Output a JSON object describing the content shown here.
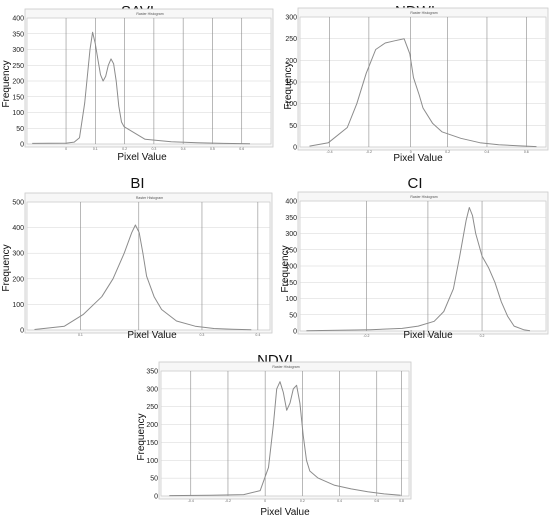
{
  "charts": [
    {
      "id": "savi",
      "title": "SAVI",
      "window_title": "Raster Histogram",
      "ylabel": "Frequency",
      "xlabel": "Pixel Value",
      "y_ticks": [
        0,
        50,
        100,
        150,
        200,
        250,
        300,
        350,
        400
      ],
      "ylim": [
        0,
        400
      ],
      "x_tick_labels": [
        "0",
        "0.1",
        "0.2",
        "0.3",
        "0.4",
        "0.5",
        "0.6"
      ],
      "chart_data": {
        "type": "line",
        "xlim": [
          -0.15,
          0.78
        ],
        "x": [
          -0.13,
          0.0,
          0.03,
          0.05,
          0.07,
          0.09,
          0.1,
          0.11,
          0.12,
          0.13,
          0.14,
          0.15,
          0.16,
          0.17,
          0.18,
          0.19,
          0.2,
          0.21,
          0.22,
          0.24,
          0.27,
          0.3,
          0.4,
          0.5,
          0.6,
          0.7
        ],
        "values": [
          2,
          3,
          6,
          20,
          130,
          300,
          355,
          320,
          270,
          220,
          200,
          215,
          250,
          270,
          255,
          200,
          120,
          70,
          55,
          45,
          30,
          15,
          7,
          4,
          2,
          1
        ]
      }
    },
    {
      "id": "ndwi",
      "title": "NDWI",
      "window_title": "Raster Histogram",
      "ylabel": "Frequency",
      "xlabel": "Pixel Value",
      "y_ticks": [
        0,
        50,
        100,
        150,
        200,
        250,
        300
      ],
      "ylim": [
        0,
        300
      ],
      "x_tick_labels": [
        "-0.4",
        "-0.2",
        "0",
        "0.2",
        "0.4",
        "0.6"
      ],
      "chart_data": {
        "type": "line",
        "xlim": [
          -0.55,
          0.75
        ],
        "x": [
          -0.5,
          -0.4,
          -0.3,
          -0.25,
          -0.2,
          -0.15,
          -0.1,
          -0.05,
          0.0,
          0.03,
          0.05,
          0.08,
          0.1,
          0.15,
          0.2,
          0.3,
          0.4,
          0.5,
          0.6,
          0.7
        ],
        "values": [
          2,
          10,
          45,
          100,
          170,
          225,
          240,
          245,
          250,
          215,
          160,
          120,
          90,
          55,
          35,
          20,
          10,
          5,
          3,
          1
        ]
      }
    },
    {
      "id": "bi",
      "title": "BI",
      "window_title": "Raster Histogram",
      "ylabel": "Frequency",
      "xlabel": "Pixel Value",
      "y_ticks": [
        0,
        100,
        200,
        300,
        400,
        500
      ],
      "ylim": [
        0,
        500
      ],
      "x_tick_labels": [
        "0.1",
        "0.2",
        "0.3",
        "0.4"
      ],
      "chart_data": {
        "type": "line",
        "xlim": [
          -0.2,
          0.45
        ],
        "x": [
          -0.18,
          -0.1,
          -0.05,
          0.0,
          0.03,
          0.06,
          0.08,
          0.09,
          0.1,
          0.11,
          0.12,
          0.14,
          0.16,
          0.2,
          0.25,
          0.3,
          0.35,
          0.4
        ],
        "values": [
          2,
          15,
          60,
          130,
          200,
          300,
          380,
          410,
          380,
          300,
          210,
          130,
          80,
          35,
          15,
          6,
          3,
          1
        ]
      }
    },
    {
      "id": "ci",
      "title": "CI",
      "window_title": "Raster Histogram",
      "ylabel": "Frequency",
      "xlabel": "Pixel Value",
      "y_ticks": [
        0,
        50,
        100,
        150,
        200,
        250,
        300,
        350,
        400
      ],
      "ylim": [
        0,
        400
      ],
      "x_tick_labels": [
        "-0.2",
        "0",
        "0.2"
      ],
      "chart_data": {
        "type": "line",
        "xlim": [
          -0.42,
          0.35
        ],
        "x": [
          -0.4,
          -0.3,
          -0.2,
          -0.1,
          -0.05,
          0.0,
          0.03,
          0.06,
          0.08,
          0.1,
          0.11,
          0.12,
          0.13,
          0.15,
          0.17,
          0.19,
          0.21,
          0.23,
          0.25,
          0.28,
          0.3
        ],
        "values": [
          1,
          2,
          4,
          8,
          15,
          30,
          60,
          130,
          230,
          340,
          380,
          355,
          300,
          230,
          195,
          150,
          90,
          45,
          15,
          4,
          1
        ]
      }
    },
    {
      "id": "ndvi",
      "title": "NDVI",
      "window_title": "Raster Histogram",
      "ylabel": "Frequency",
      "xlabel": "Pixel Value",
      "y_ticks": [
        0,
        50,
        100,
        150,
        200,
        250,
        300,
        350
      ],
      "ylim": [
        0,
        350
      ],
      "x_tick_labels": [
        "-0.4",
        "-0.2",
        "0",
        "0.2",
        "0.4",
        "0.6",
        "0.8"
      ],
      "chart_data": {
        "type": "line",
        "xlim": [
          -0.6,
          0.9
        ],
        "x": [
          -0.55,
          -0.3,
          -0.1,
          0.0,
          0.05,
          0.08,
          0.1,
          0.12,
          0.14,
          0.16,
          0.18,
          0.2,
          0.22,
          0.24,
          0.26,
          0.28,
          0.3,
          0.35,
          0.45,
          0.55,
          0.65,
          0.75,
          0.85
        ],
        "values": [
          1,
          2,
          4,
          15,
          80,
          200,
          300,
          320,
          290,
          240,
          260,
          300,
          310,
          260,
          170,
          100,
          70,
          50,
          30,
          20,
          12,
          6,
          2
        ]
      }
    }
  ]
}
